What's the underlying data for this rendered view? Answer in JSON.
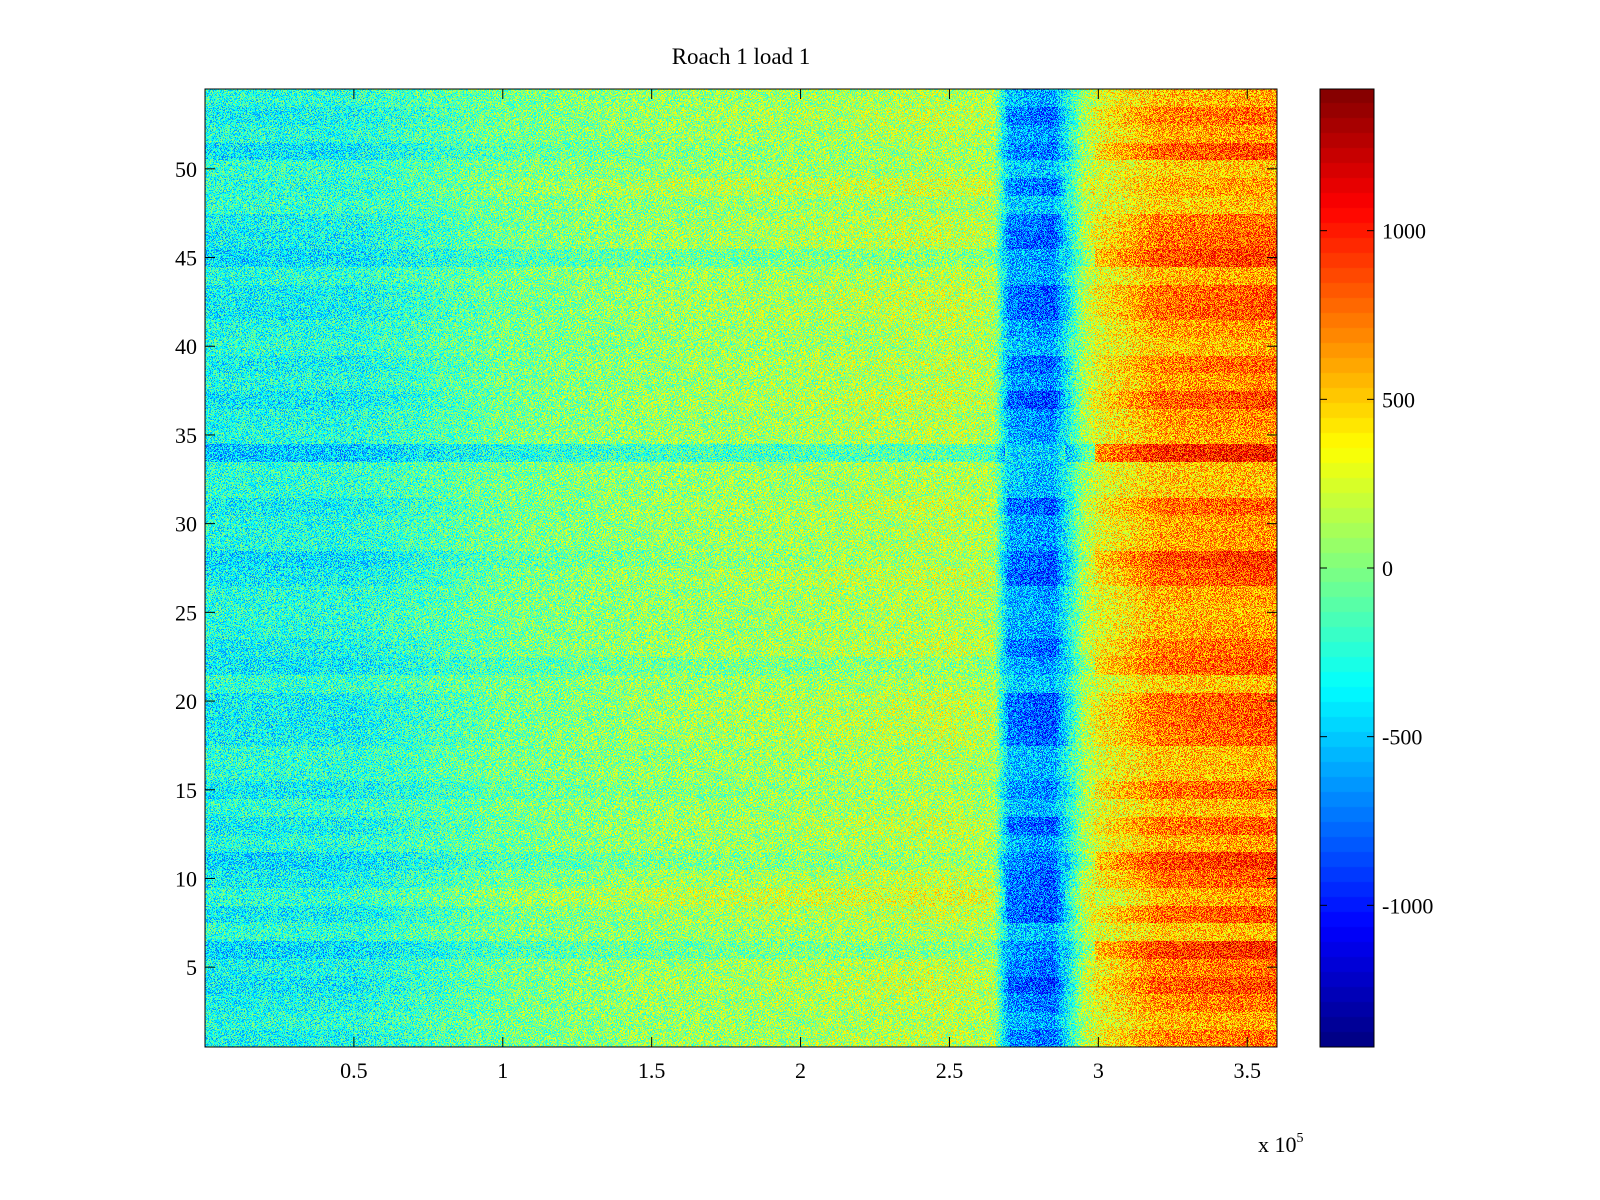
{
  "chart_data": {
    "type": "heatmap",
    "title": "Roach 1 load 1",
    "xlabel": "",
    "ylabel": "",
    "x_scale_note": "x 10",
    "x_scale_exponent": "5",
    "xlim": [
      0,
      360000
    ],
    "ylim": [
      0.5,
      54.5
    ],
    "rows": 54,
    "x_ticks": [
      {
        "value": 50000,
        "label": "0.5"
      },
      {
        "value": 100000,
        "label": "1"
      },
      {
        "value": 150000,
        "label": "1.5"
      },
      {
        "value": 200000,
        "label": "2"
      },
      {
        "value": 250000,
        "label": "2.5"
      },
      {
        "value": 300000,
        "label": "3"
      },
      {
        "value": 350000,
        "label": "3.5"
      }
    ],
    "y_ticks": [
      {
        "value": 5,
        "label": "5"
      },
      {
        "value": 10,
        "label": "10"
      },
      {
        "value": 15,
        "label": "15"
      },
      {
        "value": 20,
        "label": "20"
      },
      {
        "value": 25,
        "label": "25"
      },
      {
        "value": 30,
        "label": "30"
      },
      {
        "value": 35,
        "label": "35"
      },
      {
        "value": 40,
        "label": "40"
      },
      {
        "value": 45,
        "label": "45"
      },
      {
        "value": 50,
        "label": "50"
      }
    ],
    "colorbar": {
      "colormap": "jet",
      "clim": [
        -1420,
        1420
      ],
      "ticks": [
        {
          "value": 1000,
          "label": "1000"
        },
        {
          "value": 500,
          "label": "500"
        },
        {
          "value": 0,
          "label": "0"
        },
        {
          "value": -500,
          "label": "-500"
        },
        {
          "value": -1000,
          "label": "-1000"
        }
      ]
    },
    "trend_profile": [
      {
        "x": 0,
        "value": -300
      },
      {
        "x": 50000,
        "value": -280
      },
      {
        "x": 100000,
        "value": -40
      },
      {
        "x": 150000,
        "value": 60
      },
      {
        "x": 200000,
        "value": 100
      },
      {
        "x": 250000,
        "value": 160
      },
      {
        "x": 265000,
        "value": 120
      },
      {
        "x": 270000,
        "value": -600
      },
      {
        "x": 285000,
        "value": -700
      },
      {
        "x": 295000,
        "value": 100
      },
      {
        "x": 300000,
        "value": 300
      },
      {
        "x": 320000,
        "value": 620
      },
      {
        "x": 360000,
        "value": 700
      }
    ],
    "row_offsets": [
      {
        "row": 6,
        "offset": 200
      },
      {
        "row": 9,
        "offset": -150
      },
      {
        "row": 11,
        "offset": 150
      },
      {
        "row": 15,
        "offset": 80
      },
      {
        "row": 22,
        "offset": 150
      },
      {
        "row": 28,
        "offset": 100
      },
      {
        "row": 34,
        "offset": 400
      },
      {
        "row": 45,
        "offset": 200
      },
      {
        "row": 49,
        "offset": -100
      },
      {
        "row": 51,
        "offset": 100
      }
    ],
    "grid": false
  }
}
